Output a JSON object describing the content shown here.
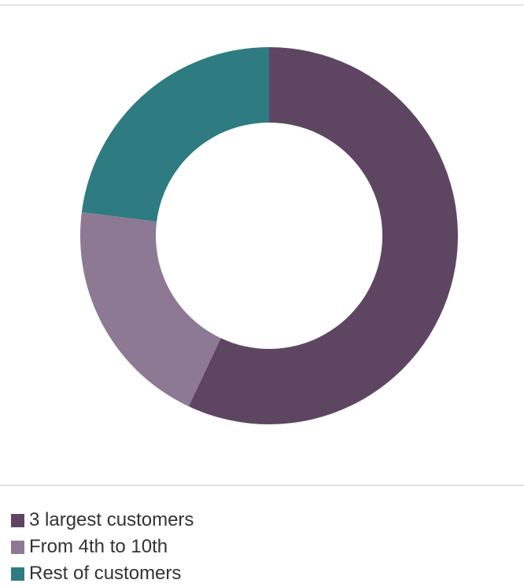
{
  "chart_data": {
    "type": "pie",
    "variant": "donut",
    "title": "",
    "legend_position": "bottom-left",
    "categories": [
      "3 largest customers",
      "From 4th to 10th",
      "Rest of customers"
    ],
    "values": [
      57,
      20,
      23
    ],
    "colors": [
      "#5e4663",
      "#8e7994",
      "#2e7b82"
    ]
  },
  "legend": {
    "items": [
      {
        "label": "3 largest customers",
        "color": "#5e4663"
      },
      {
        "label": "From 4th to 10th",
        "color": "#8e7994"
      },
      {
        "label": "Rest of customers",
        "color": "#2e7b82"
      }
    ]
  }
}
